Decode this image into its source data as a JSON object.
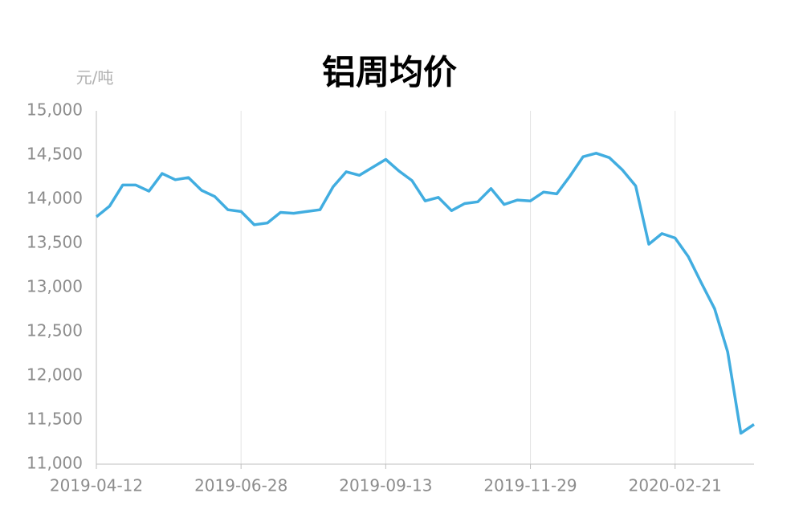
{
  "chart_data": {
    "type": "line",
    "title": "铝周均价",
    "y_label": "元/吨",
    "categories": [
      "2019-04-12",
      null,
      null,
      null,
      null,
      null,
      null,
      null,
      null,
      null,
      null,
      "2019-06-28",
      null,
      null,
      null,
      null,
      null,
      null,
      null,
      null,
      null,
      null,
      "2019-09-13",
      null,
      null,
      null,
      null,
      null,
      null,
      null,
      null,
      null,
      null,
      "2019-11-29",
      null,
      null,
      null,
      null,
      null,
      null,
      null,
      null,
      null,
      null,
      "2020-02-21",
      null,
      null,
      null,
      null,
      null,
      null
    ],
    "series": [
      {
        "name": "铝周均价",
        "color": "#41ade0",
        "values": [
          13800,
          13920,
          14160,
          14160,
          14090,
          14290,
          14220,
          14245,
          14100,
          14030,
          13880,
          13860,
          13710,
          13730,
          13850,
          13840,
          13860,
          13880,
          14140,
          14310,
          14270,
          14360,
          14450,
          14320,
          14210,
          13980,
          14020,
          13870,
          13950,
          13970,
          14120,
          13940,
          13990,
          13980,
          14080,
          14060,
          14260,
          14480,
          14520,
          14470,
          14330,
          14150,
          13490,
          13610,
          13560,
          13350,
          13050,
          12760,
          12270,
          11350,
          11450
        ]
      }
    ],
    "ylim": [
      11000,
      15000
    ],
    "yticks": [
      {
        "value": 11000,
        "label": "11,000"
      },
      {
        "value": 11500,
        "label": "11,500"
      },
      {
        "value": 12000,
        "label": "12,000"
      },
      {
        "value": 12500,
        "label": "12,500"
      },
      {
        "value": 13000,
        "label": "13,000"
      },
      {
        "value": 13500,
        "label": "13,500"
      },
      {
        "value": 14000,
        "label": "14,000"
      },
      {
        "value": 14500,
        "label": "14,500"
      },
      {
        "value": 15000,
        "label": "15,000"
      }
    ],
    "grid": true
  }
}
